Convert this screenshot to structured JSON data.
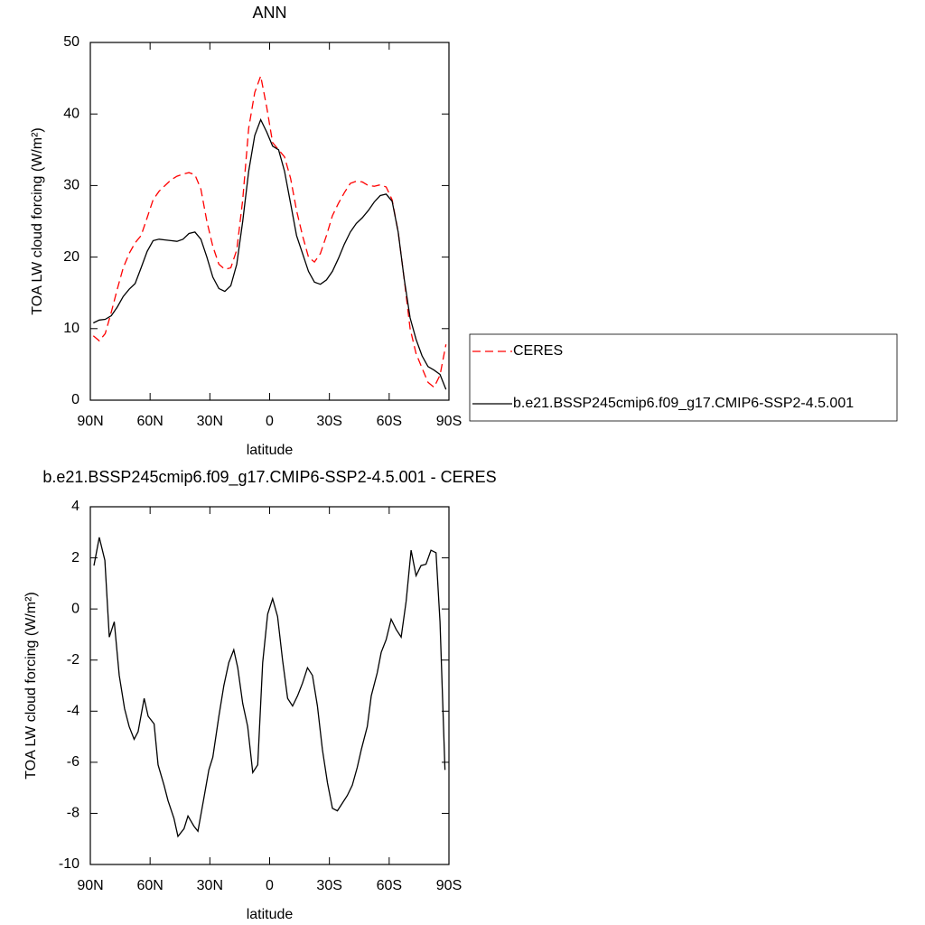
{
  "chart_data": [
    {
      "type": "line",
      "title": "ANN",
      "xlabel": "latitude",
      "ylabel": "TOA LW cloud forcing (W/m²)",
      "x": [
        88.5,
        85.5,
        82.5,
        79.5,
        76.5,
        73.5,
        70.5,
        67.5,
        64.5,
        61.5,
        58.5,
        55.5,
        52.5,
        49.5,
        46.5,
        43.5,
        40.5,
        37.5,
        34.5,
        31.5,
        28.5,
        25.5,
        22.5,
        19.5,
        16.5,
        13.5,
        10.5,
        7.5,
        4.5,
        1.5,
        -1.5,
        -4.5,
        -7.5,
        -10.5,
        -13.5,
        -16.5,
        -19.5,
        -22.5,
        -25.5,
        -28.5,
        -31.5,
        -34.5,
        -37.5,
        -40.5,
        -43.5,
        -46.5,
        -49.5,
        -52.5,
        -55.5,
        -58.5,
        -61.5,
        -64.5,
        -67.5,
        -70.5,
        -73.5,
        -76.5,
        -79.5,
        -82.5,
        -85.5,
        -88.5
      ],
      "series": [
        {
          "name": "CERES",
          "color": "#ff0000",
          "line_style": "dashed",
          "values": [
            9,
            8.3,
            9.3,
            12.3,
            15.5,
            18.5,
            20.5,
            22,
            23,
            25.5,
            28,
            29.2,
            30,
            30.8,
            31.3,
            31.6,
            31.8,
            31.5,
            29.5,
            25,
            21.5,
            19,
            18.3,
            18.5,
            21,
            28,
            38,
            43,
            45.3,
            41,
            36,
            35,
            34,
            31,
            26.5,
            23,
            20,
            19.3,
            20.5,
            23,
            25.8,
            27.5,
            29,
            30.3,
            30.6,
            30.5,
            30,
            29.9,
            30.1,
            29.8,
            28,
            23.5,
            17,
            10,
            6.5,
            4.5,
            2.5,
            1.8,
            3.5,
            7.8
          ]
        },
        {
          "name": "b.e21.BSSP245cmip6.f09_g17.CMIP6-SSP2-4.5.001",
          "color": "#000000",
          "line_style": "solid",
          "values": [
            10.8,
            11.2,
            11.3,
            11.8,
            13,
            14.5,
            15.5,
            16.3,
            18.5,
            20.8,
            22.3,
            22.5,
            22.4,
            22.3,
            22.2,
            22.5,
            23.3,
            23.5,
            22.5,
            20,
            17.2,
            15.6,
            15.2,
            16,
            19,
            25,
            32,
            37,
            39.2,
            37.5,
            35.5,
            35,
            32,
            27.5,
            23,
            20.5,
            18,
            16.5,
            16.2,
            16.8,
            18,
            19.8,
            21.8,
            23.5,
            24.7,
            25.5,
            26.5,
            27.7,
            28.6,
            28.8,
            27.8,
            23.5,
            17,
            11.5,
            8.5,
            6.2,
            4.7,
            4.2,
            3.6,
            1.5
          ]
        }
      ],
      "xlim": [
        90,
        -90
      ],
      "xticks": [
        {
          "value": 90,
          "label": "90N"
        },
        {
          "value": 60,
          "label": "60N"
        },
        {
          "value": 30,
          "label": "30N"
        },
        0,
        {
          "value": -30,
          "label": "30S"
        },
        {
          "value": -60,
          "label": "60S"
        },
        {
          "value": -90,
          "label": "90S"
        }
      ],
      "ylim": [
        0,
        50
      ],
      "yticks": [
        0,
        10,
        20,
        30,
        40,
        50
      ],
      "legend": "right"
    },
    {
      "type": "line",
      "title": "b.e21.BSSP245cmip6.f09_g17.CMIP6-SSP2-4.5.001 - CERES",
      "xlabel": "latitude",
      "ylabel": "TOA LW cloud forcing (W/m²)",
      "x": [
        88.2,
        85.5,
        82.7,
        80.5,
        78,
        75.5,
        72.8,
        70.5,
        68,
        66,
        63,
        61,
        58,
        56,
        53,
        51,
        48,
        46,
        43,
        41,
        38,
        36,
        33,
        30.5,
        28.5,
        25.5,
        23,
        20.5,
        18,
        16,
        13.5,
        11,
        8.5,
        6,
        3.5,
        1,
        -1.5,
        -4,
        -6.5,
        -9,
        -11.5,
        -14,
        -16.5,
        -19,
        -21.5,
        -24,
        -26.5,
        -29,
        -31.5,
        -34,
        -36.5,
        -39,
        -41.5,
        -44,
        -46,
        -49,
        -51,
        -54,
        -56,
        -58.5,
        -61,
        -63.5,
        -66,
        -68.5,
        -71,
        -73.5,
        -76,
        -78.5,
        -81,
        -83.5,
        -85.5,
        -88
      ],
      "series": [
        {
          "color": "#000000",
          "line_style": "solid",
          "values": [
            1.7,
            2.8,
            1.9,
            -1.1,
            -0.5,
            -2.6,
            -3.9,
            -4.6,
            -5.1,
            -4.8,
            -3.5,
            -4.2,
            -4.5,
            -6.1,
            -6.9,
            -7.5,
            -8.2,
            -8.9,
            -8.6,
            -8.1,
            -8.5,
            -8.7,
            -7.4,
            -6.3,
            -5.8,
            -4.2,
            -3,
            -2.1,
            -1.6,
            -2.3,
            -3.7,
            -4.6,
            -6.4,
            -6.1,
            -2.1,
            -0.2,
            0.4,
            -0.3,
            -2,
            -3.5,
            -3.8,
            -3.4,
            -2.9,
            -2.3,
            -2.6,
            -3.8,
            -5.5,
            -6.8,
            -7.8,
            -7.9,
            -7.6,
            -7.3,
            -6.9,
            -6.2,
            -5.5,
            -4.6,
            -3.4,
            -2.5,
            -1.7,
            -1.2,
            -0.4,
            -0.8,
            -1.1,
            0.3,
            2.3,
            1.3,
            1.7,
            1.75,
            2.3,
            2.2,
            -0.5,
            -6.3
          ]
        }
      ],
      "xlim": [
        90,
        -90
      ],
      "xticks": [
        {
          "value": 90,
          "label": "90N"
        },
        {
          "value": 60,
          "label": "60N"
        },
        {
          "value": 30,
          "label": "30N"
        },
        0,
        {
          "value": -30,
          "label": "30S"
        },
        {
          "value": -60,
          "label": "60S"
        },
        {
          "value": -90,
          "label": "90S"
        }
      ],
      "ylim": [
        -10,
        4
      ],
      "yticks": [
        -10,
        -8,
        -6,
        -4,
        -2,
        0,
        2,
        4
      ]
    }
  ]
}
